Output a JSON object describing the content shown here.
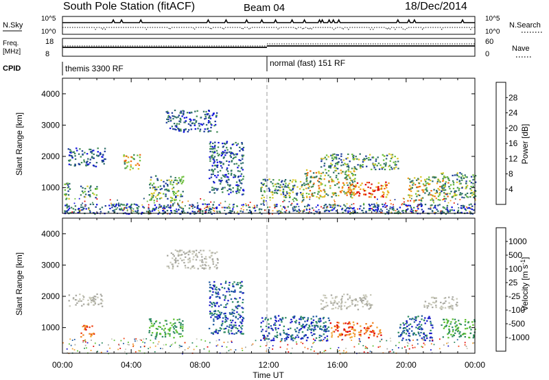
{
  "header": {
    "station": "South Pole Station (fitACF)",
    "beam": "Beam 04",
    "date": "18/Dec/2014"
  },
  "top_panels": {
    "nsky": {
      "label": "N.Sky",
      "left_ticks": [
        "10^5",
        "10^0"
      ],
      "right_ticks": [
        "10^5",
        "10^0"
      ],
      "right_label": "N.Search"
    },
    "freq": {
      "label_line1": "Freq.",
      "label_line2": "[MHz]",
      "left_ticks": [
        "18",
        "8"
      ],
      "right_ticks": [
        "60",
        "0"
      ],
      "right_label": "Nave"
    },
    "cpid": {
      "label": "CPID",
      "modes": [
        {
          "name": "themis 3300 RF",
          "start_hour": 0
        },
        {
          "name": "normal (fast) 151 RF",
          "start_hour": 12
        }
      ]
    }
  },
  "colors": {
    "power_scale": [
      "#1010e0",
      "#1e3c9a",
      "#2e6e6a",
      "#3f8a55",
      "#6cbf3a",
      "#d8c82a",
      "#f2a020",
      "#ef6810",
      "#e02010",
      "#e00000"
    ],
    "velocity_scale": [
      "#e00000",
      "#ef4010",
      "#f08020",
      "#f0a030",
      "#c8c8b8",
      "#a8a8a0",
      "#5cc030",
      "#2e8a60",
      "#1e5aa0",
      "#1818c8"
    ],
    "ground_scatter": "#a0a0a0"
  },
  "chart_data": [
    {
      "type": "heatmap",
      "title": "",
      "xlabel": "Time UT",
      "ylabel": "Slant Range [km]",
      "xlim": [
        "00:00",
        "24:00"
      ],
      "ylim": [
        180,
        4500
      ],
      "x_ticks": [
        "00:00",
        "04:00",
        "08:00",
        "12:00",
        "16:00",
        "20:00",
        "00:00"
      ],
      "y_ticks": [
        "1000",
        "2000",
        "3000",
        "4000"
      ],
      "colorbar": {
        "label": "Power [dB]",
        "ticks": [
          "4",
          "8",
          "12",
          "16",
          "20",
          "24",
          "28"
        ],
        "range": [
          0,
          30
        ]
      },
      "regions": [
        {
          "t_start": 0.0,
          "t_end": 0.4,
          "r_min": 600,
          "r_max": 1200,
          "level": "mid"
        },
        {
          "t_start": 1.0,
          "t_end": 2.0,
          "r_min": 700,
          "r_max": 1100,
          "level": "mid"
        },
        {
          "t_start": 0.3,
          "t_end": 2.5,
          "r_min": 1700,
          "r_max": 2300,
          "level": "low"
        },
        {
          "t_start": 3.5,
          "t_end": 4.5,
          "r_min": 1600,
          "r_max": 2100,
          "level": "high"
        },
        {
          "t_start": 5.0,
          "t_end": 7.0,
          "r_min": 600,
          "r_max": 1400,
          "level": "mid"
        },
        {
          "t_start": 6.0,
          "t_end": 9.0,
          "r_min": 2800,
          "r_max": 3500,
          "level": "low"
        },
        {
          "t_start": 8.5,
          "t_end": 10.5,
          "r_min": 800,
          "r_max": 2500,
          "level": "low"
        },
        {
          "t_start": 11.5,
          "t_end": 14.0,
          "r_min": 600,
          "r_max": 1300,
          "level": "mid"
        },
        {
          "t_start": 14.0,
          "t_end": 17.0,
          "r_min": 700,
          "r_max": 1600,
          "level": "high"
        },
        {
          "t_start": 16.5,
          "t_end": 19.0,
          "r_min": 700,
          "r_max": 1200,
          "level": "peak"
        },
        {
          "t_start": 15.0,
          "t_end": 19.5,
          "r_min": 1600,
          "r_max": 2100,
          "level": "mid"
        },
        {
          "t_start": 20.0,
          "t_end": 22.5,
          "r_min": 600,
          "r_max": 1400,
          "level": "high"
        },
        {
          "t_start": 22.0,
          "t_end": 24.0,
          "r_min": 700,
          "r_max": 1500,
          "level": "mid"
        },
        {
          "t_start": 0.0,
          "t_end": 24.0,
          "r_min": 180,
          "r_max": 500,
          "level": "low"
        }
      ]
    },
    {
      "type": "heatmap",
      "title": "",
      "xlabel": "Time UT",
      "ylabel": "Slant Range [km]",
      "xlim": [
        "00:00",
        "24:00"
      ],
      "ylim": [
        180,
        4500
      ],
      "x_ticks": [
        "00:00",
        "04:00",
        "08:00",
        "12:00",
        "16:00",
        "20:00",
        "00:00"
      ],
      "y_ticks": [
        "1000",
        "2000",
        "3000",
        "4000"
      ],
      "colorbar": {
        "label": "Velocity [m s^-1]",
        "ticks": [
          "1000",
          "500",
          "100",
          "25",
          "-25",
          "-100",
          "-500",
          "-1000"
        ],
        "range": [
          -1200,
          1200
        ]
      },
      "regions": [
        {
          "t_start": 0.3,
          "t_end": 2.3,
          "r_min": 1700,
          "r_max": 2100,
          "level": "ground"
        },
        {
          "t_start": 1.0,
          "t_end": 1.8,
          "r_min": 700,
          "r_max": 1100,
          "level": "negative"
        },
        {
          "t_start": 5.0,
          "t_end": 7.0,
          "r_min": 700,
          "r_max": 1300,
          "level": "positive-small"
        },
        {
          "t_start": 6.0,
          "t_end": 9.0,
          "r_min": 2900,
          "r_max": 3500,
          "level": "ground"
        },
        {
          "t_start": 8.5,
          "t_end": 10.5,
          "r_min": 800,
          "r_max": 2500,
          "level": "positive-large"
        },
        {
          "t_start": 11.5,
          "t_end": 15.5,
          "r_min": 600,
          "r_max": 1400,
          "level": "positive-large"
        },
        {
          "t_start": 15.5,
          "t_end": 18.5,
          "r_min": 700,
          "r_max": 1200,
          "level": "negative"
        },
        {
          "t_start": 15.0,
          "t_end": 18.0,
          "r_min": 1600,
          "r_max": 2100,
          "level": "ground"
        },
        {
          "t_start": 19.5,
          "t_end": 21.5,
          "r_min": 600,
          "r_max": 1400,
          "level": "positive-large"
        },
        {
          "t_start": 21.0,
          "t_end": 23.0,
          "r_min": 1600,
          "r_max": 2000,
          "level": "ground"
        },
        {
          "t_start": 22.0,
          "t_end": 24.0,
          "r_min": 700,
          "r_max": 1300,
          "level": "positive-small"
        }
      ]
    }
  ]
}
